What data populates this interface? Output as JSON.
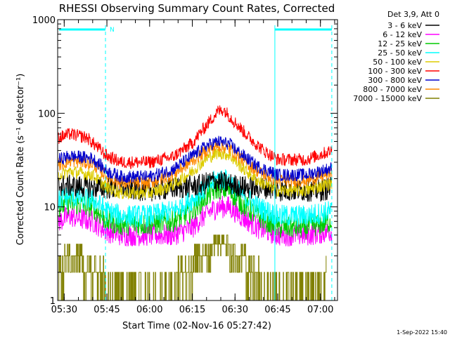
{
  "chart_data": {
    "type": "line",
    "title": "RHESSI Observing Summary Count Rates, Corrected",
    "xlabel": "Start Time (02-Nov-16 05:27:42)",
    "ylabel": "Corrected Count Rate (s⁻¹ detector⁻¹)",
    "y_scale": "log",
    "ylim": [
      1,
      1000
    ],
    "xlim": [
      "05:27:42",
      "07:06:00"
    ],
    "x_tick_labels": [
      "05:30",
      "05:45",
      "06:00",
      "06:15",
      "06:30",
      "06:45",
      "07:00"
    ],
    "y_tick_labels": [
      "1",
      "10",
      "100",
      "1000"
    ],
    "legend_title": "Det 3,9, Att 0",
    "legend_position": "outside-right-top",
    "timestamp": "1-Sep-2022 15:40",
    "night_marker_label": "N",
    "night_start": "05:44:30",
    "night_end": "06:44:00",
    "series": [
      {
        "name": "3 - 6 keV",
        "color": "#000000",
        "times": [
          "05:28",
          "05:44",
          "05:46",
          "06:00",
          "06:10",
          "06:18",
          "06:22",
          "06:26",
          "06:30",
          "06:35",
          "06:42",
          "06:45",
          "07:00",
          "07:04"
        ],
        "values": [
          17,
          16,
          16,
          15,
          16,
          17,
          19,
          18,
          17,
          16,
          16,
          15,
          15,
          16
        ]
      },
      {
        "name": "6 - 12 keV",
        "color": "#ff00ff",
        "times": [
          "05:28",
          "05:32",
          "05:40",
          "05:45",
          "05:50",
          "06:00",
          "06:08",
          "06:15",
          "06:20",
          "06:24",
          "06:28",
          "06:32",
          "06:38",
          "06:45",
          "06:55",
          "07:04"
        ],
        "values": [
          7,
          8,
          7,
          5.5,
          5,
          5,
          5,
          6,
          8.5,
          10,
          10,
          8,
          6,
          5,
          5,
          5.5
        ]
      },
      {
        "name": "12 - 25 keV",
        "color": "#00cc00",
        "times": [
          "05:28",
          "05:32",
          "05:40",
          "05:45",
          "05:50",
          "06:00",
          "06:08",
          "06:15",
          "06:20",
          "06:24",
          "06:28",
          "06:32",
          "06:38",
          "06:45",
          "06:55",
          "07:04"
        ],
        "values": [
          10,
          11,
          10,
          7,
          6.5,
          6.5,
          7,
          9,
          13,
          16,
          15,
          11,
          8,
          6,
          6,
          7
        ]
      },
      {
        "name": "25 - 50 keV",
        "color": "#00ffff",
        "times": [
          "05:28",
          "05:32",
          "05:40",
          "05:45",
          "05:50",
          "06:00",
          "06:08",
          "06:15",
          "06:20",
          "06:24",
          "06:28",
          "06:32",
          "06:38",
          "06:45",
          "06:55",
          "07:04"
        ],
        "values": [
          12,
          13,
          12,
          9,
          8,
          8,
          9,
          12,
          16,
          20,
          19,
          14,
          10,
          8,
          8,
          9
        ]
      },
      {
        "name": "50 - 100 keV",
        "color": "#ddcc00",
        "times": [
          "05:28",
          "05:32",
          "05:40",
          "05:45",
          "05:50",
          "06:00",
          "06:08",
          "06:15",
          "06:20",
          "06:24",
          "06:28",
          "06:32",
          "06:38",
          "06:45",
          "06:55",
          "07:04"
        ],
        "values": [
          22,
          24,
          22,
          16,
          14,
          14,
          17,
          24,
          33,
          38,
          36,
          27,
          19,
          15,
          15,
          18
        ]
      },
      {
        "name": "100 - 300 keV",
        "color": "#ff0000",
        "times": [
          "05:28",
          "05:32",
          "05:38",
          "05:45",
          "05:50",
          "06:00",
          "06:08",
          "06:15",
          "06:20",
          "06:24",
          "06:26",
          "06:30",
          "06:35",
          "06:40",
          "06:45",
          "06:55",
          "07:04"
        ],
        "values": [
          55,
          60,
          55,
          35,
          30,
          30,
          34,
          48,
          75,
          105,
          110,
          80,
          55,
          40,
          32,
          32,
          40
        ]
      },
      {
        "name": "300 - 800 keV",
        "color": "#0000cc",
        "times": [
          "05:28",
          "05:32",
          "05:40",
          "05:45",
          "05:50",
          "06:00",
          "06:08",
          "06:15",
          "06:20",
          "06:24",
          "06:28",
          "06:32",
          "06:38",
          "06:45",
          "06:55",
          "07:04"
        ],
        "values": [
          32,
          35,
          33,
          24,
          21,
          21,
          25,
          35,
          45,
          50,
          47,
          37,
          27,
          22,
          22,
          26
        ]
      },
      {
        "name": "800 - 7000 keV",
        "color": "#ff8800",
        "times": [
          "05:28",
          "05:32",
          "05:40",
          "05:45",
          "05:50",
          "06:00",
          "06:08",
          "06:15",
          "06:20",
          "06:24",
          "06:28",
          "06:32",
          "06:38",
          "06:45",
          "06:55",
          "07:04"
        ],
        "values": [
          28,
          31,
          29,
          21,
          18,
          18,
          22,
          31,
          40,
          45,
          42,
          33,
          24,
          19,
          19,
          23
        ]
      },
      {
        "name": "7000 - 15000 keV",
        "color": "#808000",
        "times": [
          "05:28",
          "05:30",
          "05:33",
          "05:40",
          "05:44",
          "05:45",
          "06:06",
          "06:10",
          "06:15",
          "06:20",
          "06:24",
          "06:28",
          "06:32",
          "06:36",
          "06:40",
          "06:41",
          "07:00",
          "07:02"
        ],
        "values": [
          1.5,
          2.5,
          3,
          2,
          1.5,
          1,
          1,
          1.8,
          2.5,
          3,
          4,
          3.5,
          3,
          2,
          1.3,
          1,
          1,
          2
        ]
      }
    ]
  }
}
